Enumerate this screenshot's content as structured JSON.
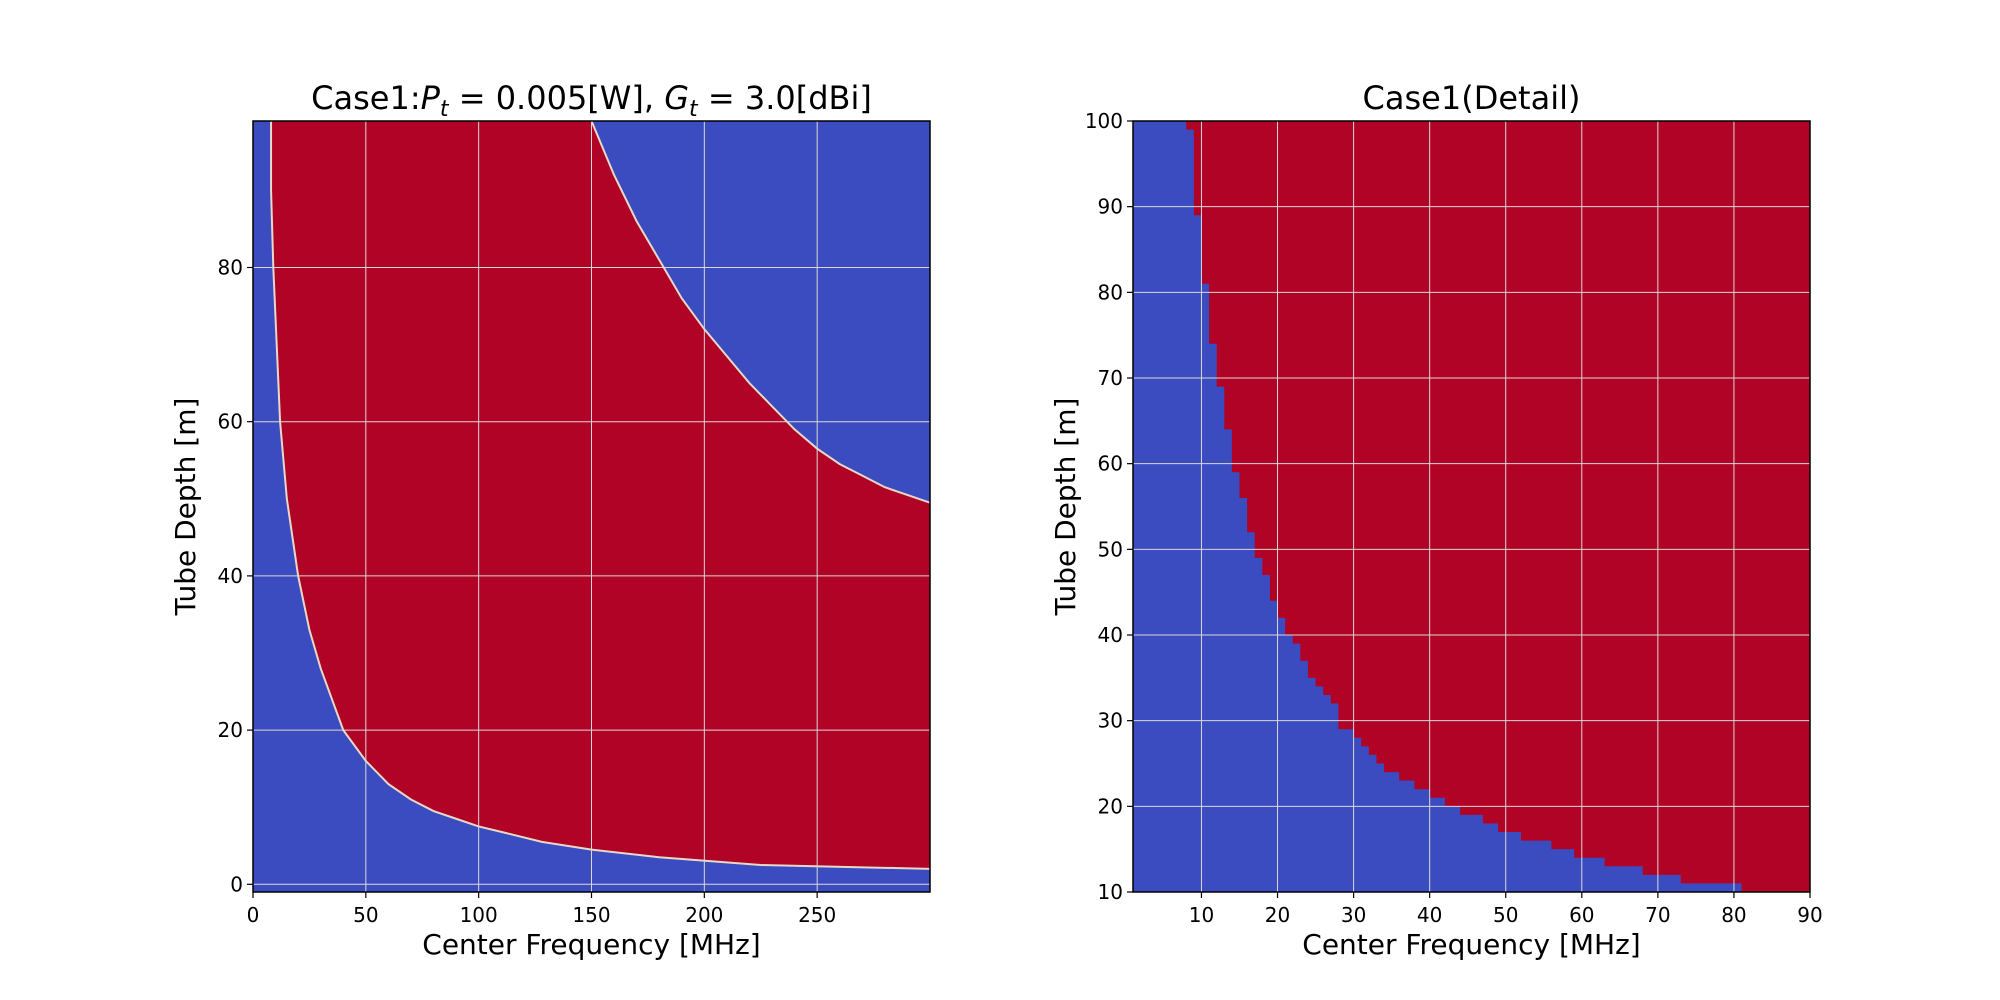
{
  "colors": {
    "inside": "#b00326",
    "outside": "#3b4cc0",
    "grid": "#d9d9d9",
    "frame": "#000000"
  },
  "chart_data": [
    {
      "type": "heatmap",
      "title": {
        "prefix": "Case1:",
        "p_var": "P",
        "p_sub": "t",
        "p_eq": " = 0.005[W], ",
        "g_var": "G",
        "g_sub": "t",
        "g_eq": " = 3.0[dBi]"
      },
      "xlabel": "Center Frequency [MHz]",
      "ylabel": "Tube Depth [m]",
      "xlim": [
        0,
        300
      ],
      "ylim": [
        -1,
        99
      ],
      "xticks": [
        "0",
        "50",
        "100",
        "150",
        "200",
        "250"
      ],
      "xtick_values": [
        0,
        50,
        100,
        150,
        200,
        250
      ],
      "yticks": [
        "0",
        "20",
        "40",
        "60",
        "80"
      ],
      "ytick_values": [
        0,
        20,
        40,
        60,
        80
      ],
      "grid": true,
      "region_color": "inside",
      "background_color": "outside",
      "lower_boundary": [
        [
          8,
          99
        ],
        [
          8,
          90
        ],
        [
          9,
          80
        ],
        [
          12,
          60
        ],
        [
          15,
          50
        ],
        [
          20,
          40
        ],
        [
          25,
          33
        ],
        [
          30,
          28
        ],
        [
          40,
          20
        ],
        [
          50,
          16
        ],
        [
          60,
          13
        ],
        [
          70,
          11
        ],
        [
          80,
          9.5
        ],
        [
          90,
          8.5
        ],
        [
          100,
          7.5
        ],
        [
          110,
          6.8
        ],
        [
          128,
          5.5
        ],
        [
          150,
          4.5
        ],
        [
          180,
          3.5
        ],
        [
          225,
          2.5
        ],
        [
          300,
          2
        ]
      ],
      "upper_boundary": [
        [
          150,
          99
        ],
        [
          160,
          92
        ],
        [
          170,
          86
        ],
        [
          180,
          81
        ],
        [
          190,
          76
        ],
        [
          200,
          72
        ],
        [
          210,
          68.5
        ],
        [
          220,
          65
        ],
        [
          230,
          62
        ],
        [
          240,
          59
        ],
        [
          250,
          56.5
        ],
        [
          260,
          54.5
        ],
        [
          270,
          53
        ],
        [
          280,
          51.5
        ],
        [
          300,
          49.5
        ]
      ]
    },
    {
      "type": "heatmap",
      "title": "Case1(Detail)",
      "xlabel": "Center Frequency [MHz]",
      "ylabel": "Tube Depth [m]",
      "xlim": [
        1,
        90
      ],
      "ylim": [
        10,
        100
      ],
      "xticks": [
        "10",
        "20",
        "30",
        "40",
        "50",
        "60",
        "70",
        "80",
        "90"
      ],
      "xtick_values": [
        10,
        20,
        30,
        40,
        50,
        60,
        70,
        80,
        90
      ],
      "yticks": [
        "10",
        "20",
        "30",
        "40",
        "50",
        "60",
        "70",
        "80",
        "90",
        "100"
      ],
      "ytick_values": [
        10,
        20,
        30,
        40,
        50,
        60,
        70,
        80,
        90,
        100
      ],
      "grid": true,
      "region_color": "inside",
      "background_color": "outside",
      "boundary_steps": [
        [
          7.5,
          100
        ],
        [
          8,
          99
        ],
        [
          9,
          89
        ],
        [
          10,
          81
        ],
        [
          11,
          74
        ],
        [
          12,
          69
        ],
        [
          13,
          64
        ],
        [
          14,
          59
        ],
        [
          15,
          56
        ],
        [
          16,
          52
        ],
        [
          17,
          49
        ],
        [
          18,
          47
        ],
        [
          19,
          44
        ],
        [
          20,
          42
        ],
        [
          21,
          40
        ],
        [
          22,
          39
        ],
        [
          23,
          37
        ],
        [
          24,
          35
        ],
        [
          25,
          34
        ],
        [
          26,
          33
        ],
        [
          27,
          32
        ],
        [
          28,
          29
        ],
        [
          30,
          28
        ],
        [
          31,
          27
        ],
        [
          32,
          26
        ],
        [
          33,
          25
        ],
        [
          34,
          24
        ],
        [
          36,
          23
        ],
        [
          38,
          22
        ],
        [
          40,
          21
        ],
        [
          42,
          20
        ],
        [
          44,
          19
        ],
        [
          47,
          18
        ],
        [
          49,
          17
        ],
        [
          52,
          16
        ],
        [
          56,
          15
        ],
        [
          59,
          14
        ],
        [
          63,
          13
        ],
        [
          68,
          12
        ],
        [
          73,
          11
        ],
        [
          81,
          10
        ]
      ]
    }
  ]
}
